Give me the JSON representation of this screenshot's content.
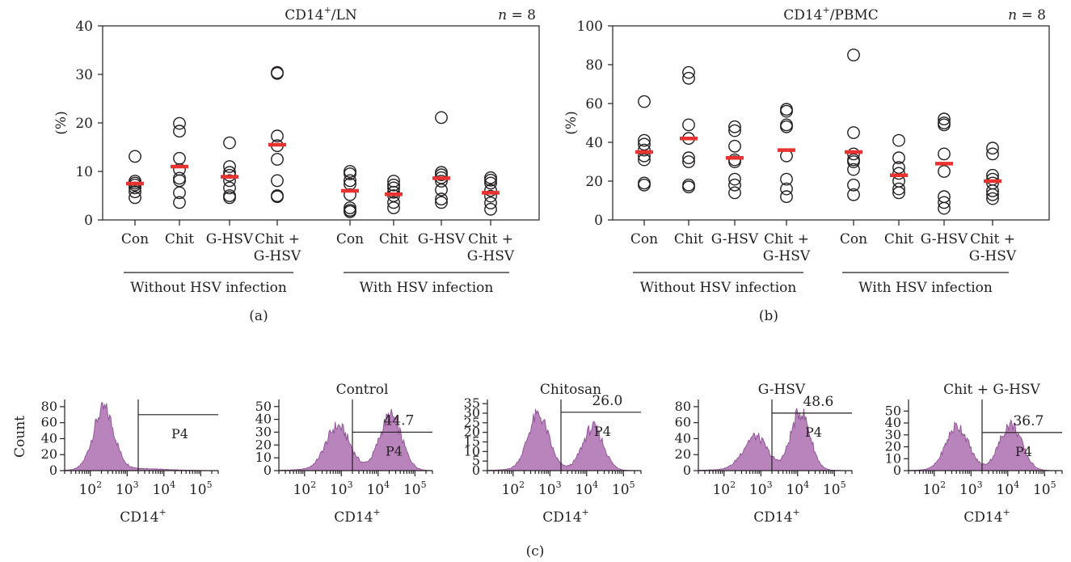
{
  "colors": {
    "median": "#e8322f",
    "histogram_fill": "#b983bc",
    "histogram_edge": "#8e5296",
    "ink": "#231f20"
  },
  "chart_data": [
    {
      "id": "a",
      "panel_label": "(a)",
      "type": "scatter",
      "title": "CD14",
      "title_sup": "+",
      "title_rest": "/LN",
      "n_italic": "n",
      "n_rest": " = 8",
      "ylabel": "(%)",
      "ylim": [
        0,
        40
      ],
      "yticks": [
        0,
        10,
        20,
        30,
        40
      ],
      "categories": [
        [
          "Con"
        ],
        [
          "Chit"
        ],
        [
          "G-HSV"
        ],
        [
          "Chit +",
          "G-HSV"
        ],
        [
          "Con"
        ],
        [
          "Chit"
        ],
        [
          "G-HSV"
        ],
        [
          "Chit +",
          "G-HSV"
        ]
      ],
      "groups": [
        "Without HSV infection",
        "With HSV infection"
      ],
      "series": [
        {
          "values": [
            13.1,
            8.0,
            7.6,
            7.2,
            6.6,
            5.8,
            4.6
          ],
          "median": 7.5
        },
        {
          "values": [
            19.9,
            18.3,
            12.7,
            10.4,
            8.6,
            8.1,
            5.6,
            3.6
          ],
          "median": 11.0
        },
        {
          "values": [
            15.9,
            11.0,
            9.8,
            9.2,
            8.1,
            6.6,
            5.0,
            4.6
          ],
          "median": 8.9
        },
        {
          "values": [
            30.4,
            30.2,
            17.3,
            15.3,
            12.5,
            8.1,
            5.0,
            4.8
          ],
          "median": 15.5
        },
        {
          "values": [
            10.0,
            9.5,
            8.1,
            7.4,
            5.2,
            2.5,
            2.0,
            1.7
          ],
          "median": 6.0
        },
        {
          "values": [
            8.0,
            7.2,
            6.6,
            5.7,
            5.0,
            3.6,
            2.5
          ],
          "median": 5.3
        },
        {
          "values": [
            21.1,
            9.8,
            9.3,
            8.7,
            8.0,
            6.2,
            4.3,
            3.6
          ],
          "median": 8.6
        },
        {
          "values": [
            8.7,
            8.2,
            7.6,
            6.1,
            4.9,
            3.5,
            2.2
          ],
          "median": 5.6
        }
      ]
    },
    {
      "id": "b",
      "panel_label": "(b)",
      "type": "scatter",
      "title": "CD14",
      "title_sup": "+",
      "title_rest": "/PBMC",
      "n_italic": "n",
      "n_rest": " = 8",
      "ylabel": "(%)",
      "ylim": [
        0,
        100
      ],
      "yticks": [
        0,
        20,
        40,
        60,
        80,
        100
      ],
      "categories": [
        [
          "Con"
        ],
        [
          "Chit"
        ],
        [
          "G-HSV"
        ],
        [
          "Chit +",
          "G-HSV"
        ],
        [
          "Con"
        ],
        [
          "Chit"
        ],
        [
          "G-HSV"
        ],
        [
          "Chit +",
          "G-HSV"
        ]
      ],
      "groups": [
        "Without HSV infection",
        "With HSV infection"
      ],
      "series": [
        {
          "values": [
            61,
            41,
            39,
            36,
            33,
            31,
            19,
            18
          ],
          "median": 35
        },
        {
          "values": [
            76,
            73,
            49,
            42,
            32,
            30,
            18,
            17
          ],
          "median": 42
        },
        {
          "values": [
            48,
            46,
            38,
            31,
            30,
            21,
            18,
            14
          ],
          "median": 32
        },
        {
          "values": [
            57,
            56,
            49,
            48,
            33,
            21,
            16,
            12
          ],
          "median": 36
        },
        {
          "values": [
            85,
            45,
            34,
            31,
            30,
            26,
            18,
            13
          ],
          "median": 35
        },
        {
          "values": [
            41,
            32,
            27,
            24,
            20,
            16,
            14
          ],
          "median": 23
        },
        {
          "values": [
            52,
            50,
            49,
            34,
            25,
            12,
            9,
            6
          ],
          "median": 29
        },
        {
          "values": [
            37,
            34,
            23,
            21,
            19,
            15,
            13,
            11
          ],
          "median": 20
        }
      ]
    },
    {
      "id": "c",
      "panel_label": "(c)",
      "type": "area",
      "ylabel": "Count",
      "xlabel": "CD14",
      "xlabel_sup": "+",
      "x_scale": "log",
      "xlim": [
        20,
        300000
      ],
      "xtick_base": "10",
      "xtick_exponents": [
        "2",
        "3",
        "4",
        "5"
      ],
      "gate_label": "P4",
      "gate_x": 2000,
      "histograms": [
        {
          "title": "",
          "ylim": [
            0,
            85
          ],
          "yticks": [
            0,
            20,
            40,
            60,
            80
          ],
          "gate_pct": "",
          "gate_y": 70,
          "peaks": [
            {
              "center": 230,
              "height": 75,
              "width": 0.28
            }
          ]
        },
        {
          "title": "Control",
          "ylim": [
            0,
            53
          ],
          "yticks": [
            0,
            10,
            20,
            30,
            40,
            50
          ],
          "gate_pct": "44.7",
          "gate_y": 30,
          "peaks": [
            {
              "center": 800,
              "height": 33,
              "width": 0.32
            },
            {
              "center": 22000,
              "height": 42,
              "width": 0.3
            }
          ]
        },
        {
          "title": "Chitosan",
          "ylim": [
            0,
            35.5
          ],
          "yticks": [
            0,
            5,
            10,
            15,
            20,
            25,
            30,
            35
          ],
          "gate_pct": "26.0",
          "gate_y": 30.5,
          "peaks": [
            {
              "center": 480,
              "height": 28,
              "width": 0.28
            },
            {
              "center": 15000,
              "height": 22,
              "width": 0.28
            }
          ]
        },
        {
          "title": "G-HSV",
          "ylim": [
            0,
            85
          ],
          "yticks": [
            0,
            20,
            40,
            60,
            80
          ],
          "gate_pct": "48.6",
          "gate_y": 72,
          "peaks": [
            {
              "center": 700,
              "height": 40,
              "width": 0.32
            },
            {
              "center": 12000,
              "height": 72,
              "width": 0.26
            }
          ]
        },
        {
          "title": "Chit + G-HSV",
          "ylim": [
            0,
            57
          ],
          "yticks": [
            0,
            10,
            20,
            30,
            40,
            50
          ],
          "gate_pct": "36.7",
          "gate_y": 32,
          "peaks": [
            {
              "center": 420,
              "height": 36,
              "width": 0.3
            },
            {
              "center": 12000,
              "height": 38,
              "width": 0.3
            }
          ]
        }
      ]
    }
  ]
}
